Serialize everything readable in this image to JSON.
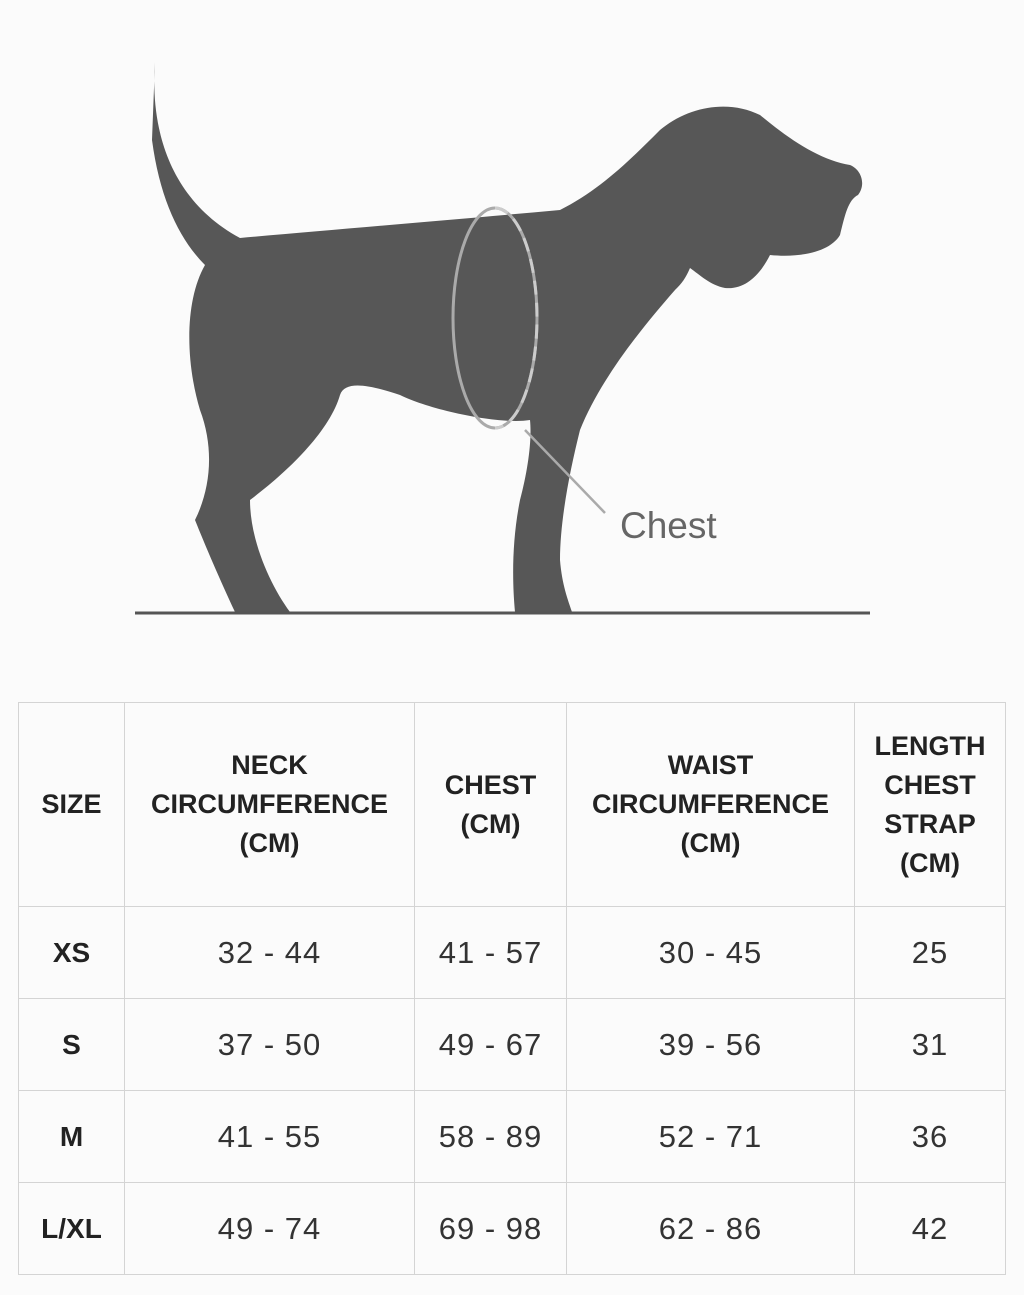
{
  "illustration": {
    "label": "Chest"
  },
  "table": {
    "header": [
      [
        "SIZE"
      ],
      [
        "NECK",
        "CIRCUMFERENCE",
        "(CM)"
      ],
      [
        "CHEST",
        "(CM)"
      ],
      [
        "WAIST",
        "CIRCUMFERENCE",
        "(CM)"
      ],
      [
        "LENGTH",
        "CHEST",
        "STRAP",
        "(CM)"
      ]
    ],
    "rows": [
      [
        "XS",
        "32 - 44",
        "41 - 57",
        "30 - 45",
        "25"
      ],
      [
        "S",
        "37 - 50",
        "49 - 67",
        "39 - 56",
        "31"
      ],
      [
        "M",
        "41 - 55",
        "58 - 89",
        "52 - 71",
        "36"
      ],
      [
        "L/XL",
        "49 - 74",
        "69 - 98",
        "62 - 86",
        "42"
      ]
    ]
  }
}
